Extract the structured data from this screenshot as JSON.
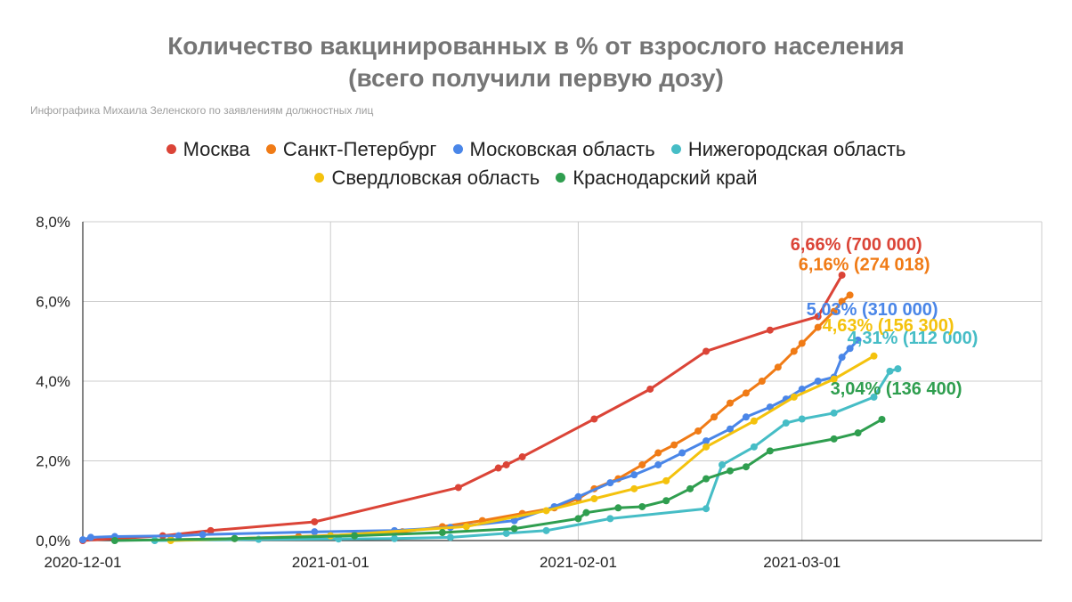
{
  "chart_data": {
    "type": "line",
    "title": "Количество вакцинированных в % от взрослого населения",
    "title_line2": "(всего получили первую дозу)",
    "subtitle": "Инфографика Михаила Зеленского по заявлениям должностных лиц",
    "xlabel": "",
    "ylabel": "",
    "xlim": [
      "2020-12-01",
      "2021-03-31"
    ],
    "ylim": [
      0,
      8
    ],
    "y_ticks": [
      "0,0%",
      "2,0%",
      "4,0%",
      "6,0%",
      "8,0%"
    ],
    "x_ticks": [
      "2020-12-01",
      "2021-01-01",
      "2021-02-01",
      "2021-03-01"
    ],
    "grid": true,
    "legend_position": "top",
    "series": [
      {
        "name": "Москва",
        "color": "#db4437",
        "label": "6,66% (700 000)",
        "points": [
          [
            "2020-12-01",
            0.0
          ],
          [
            "2020-12-11",
            0.12
          ],
          [
            "2020-12-17",
            0.25
          ],
          [
            "2020-12-30",
            0.47
          ],
          [
            "2021-01-17",
            1.33
          ],
          [
            "2021-01-22",
            1.82
          ],
          [
            "2021-01-23",
            1.9
          ],
          [
            "2021-01-25",
            2.1
          ],
          [
            "2021-02-03",
            3.05
          ],
          [
            "2021-02-10",
            3.8
          ],
          [
            "2021-02-17",
            4.75
          ],
          [
            "2021-02-25",
            5.28
          ],
          [
            "2021-03-03",
            5.62
          ],
          [
            "2021-03-06",
            6.66
          ]
        ]
      },
      {
        "name": "Санкт-Петербург",
        "color": "#f07b16",
        "label": "6,16% (274 018)",
        "points": [
          [
            "2020-12-12",
            0.02
          ],
          [
            "2020-12-20",
            0.05
          ],
          [
            "2020-12-28",
            0.1
          ],
          [
            "2021-01-04",
            0.15
          ],
          [
            "2021-01-10",
            0.22
          ],
          [
            "2021-01-15",
            0.35
          ],
          [
            "2021-01-20",
            0.5
          ],
          [
            "2021-01-25",
            0.68
          ],
          [
            "2021-01-29",
            0.82
          ],
          [
            "2021-02-01",
            1.05
          ],
          [
            "2021-02-03",
            1.3
          ],
          [
            "2021-02-06",
            1.55
          ],
          [
            "2021-02-09",
            1.9
          ],
          [
            "2021-02-11",
            2.2
          ],
          [
            "2021-02-13",
            2.4
          ],
          [
            "2021-02-16",
            2.75
          ],
          [
            "2021-02-18",
            3.1
          ],
          [
            "2021-02-20",
            3.45
          ],
          [
            "2021-02-22",
            3.7
          ],
          [
            "2021-02-24",
            4.0
          ],
          [
            "2021-02-26",
            4.35
          ],
          [
            "2021-02-28",
            4.75
          ],
          [
            "2021-03-01",
            4.95
          ],
          [
            "2021-03-03",
            5.35
          ],
          [
            "2021-03-05",
            5.75
          ],
          [
            "2021-03-06",
            6.0
          ],
          [
            "2021-03-07",
            6.16
          ]
        ]
      },
      {
        "name": "Московская область",
        "color": "#4a86e8",
        "label": "5,03% (310 000)",
        "points": [
          [
            "2020-12-01",
            0.02
          ],
          [
            "2020-12-02",
            0.08
          ],
          [
            "2020-12-05",
            0.1
          ],
          [
            "2020-12-13",
            0.12
          ],
          [
            "2020-12-16",
            0.15
          ],
          [
            "2020-12-30",
            0.22
          ],
          [
            "2021-01-09",
            0.25
          ],
          [
            "2021-01-16",
            0.33
          ],
          [
            "2021-01-24",
            0.5
          ],
          [
            "2021-01-29",
            0.85
          ],
          [
            "2021-02-01",
            1.1
          ],
          [
            "2021-02-05",
            1.45
          ],
          [
            "2021-02-08",
            1.65
          ],
          [
            "2021-02-11",
            1.9
          ],
          [
            "2021-02-14",
            2.2
          ],
          [
            "2021-02-17",
            2.5
          ],
          [
            "2021-02-20",
            2.8
          ],
          [
            "2021-02-22",
            3.1
          ],
          [
            "2021-02-25",
            3.35
          ],
          [
            "2021-02-27",
            3.55
          ],
          [
            "2021-03-01",
            3.8
          ],
          [
            "2021-03-03",
            4.0
          ],
          [
            "2021-03-05",
            4.1
          ],
          [
            "2021-03-06",
            4.6
          ],
          [
            "2021-03-07",
            4.82
          ],
          [
            "2021-03-08",
            5.03
          ]
        ]
      },
      {
        "name": "Нижегородская область",
        "color": "#46bdc6",
        "label": "4,31% (112 000)",
        "points": [
          [
            "2020-12-10",
            0.0
          ],
          [
            "2020-12-23",
            0.03
          ],
          [
            "2021-01-02",
            0.04
          ],
          [
            "2021-01-09",
            0.05
          ],
          [
            "2021-01-16",
            0.08
          ],
          [
            "2021-01-23",
            0.18
          ],
          [
            "2021-01-28",
            0.25
          ],
          [
            "2021-02-05",
            0.55
          ],
          [
            "2021-02-17",
            0.8
          ],
          [
            "2021-02-19",
            1.9
          ],
          [
            "2021-02-23",
            2.35
          ],
          [
            "2021-02-27",
            2.95
          ],
          [
            "2021-03-01",
            3.05
          ],
          [
            "2021-03-05",
            3.2
          ],
          [
            "2021-03-10",
            3.6
          ],
          [
            "2021-03-12",
            4.25
          ],
          [
            "2021-03-13",
            4.31
          ]
        ]
      },
      {
        "name": "Свердловская область",
        "color": "#f4c20d",
        "label": "4,63% (156 300)",
        "points": [
          [
            "2020-12-12",
            0.0
          ],
          [
            "2021-01-01",
            0.12
          ],
          [
            "2021-01-18",
            0.35
          ],
          [
            "2021-01-28",
            0.75
          ],
          [
            "2021-02-03",
            1.05
          ],
          [
            "2021-02-08",
            1.3
          ],
          [
            "2021-02-12",
            1.5
          ],
          [
            "2021-02-17",
            2.35
          ],
          [
            "2021-02-23",
            3.0
          ],
          [
            "2021-02-28",
            3.6
          ],
          [
            "2021-03-05",
            4.05
          ],
          [
            "2021-03-10",
            4.63
          ]
        ]
      },
      {
        "name": "Краснодарский край",
        "color": "#2f9e4f",
        "label": "3,04% (136 400)",
        "points": [
          [
            "2020-12-05",
            0.0
          ],
          [
            "2020-12-20",
            0.05
          ],
          [
            "2021-01-04",
            0.12
          ],
          [
            "2021-01-15",
            0.2
          ],
          [
            "2021-01-24",
            0.3
          ],
          [
            "2021-02-01",
            0.55
          ],
          [
            "2021-02-02",
            0.7
          ],
          [
            "2021-02-06",
            0.82
          ],
          [
            "2021-02-09",
            0.85
          ],
          [
            "2021-02-12",
            1.0
          ],
          [
            "2021-02-15",
            1.3
          ],
          [
            "2021-02-17",
            1.55
          ],
          [
            "2021-02-20",
            1.75
          ],
          [
            "2021-02-22",
            1.85
          ],
          [
            "2021-02-25",
            2.25
          ],
          [
            "2021-03-05",
            2.55
          ],
          [
            "2021-03-08",
            2.7
          ],
          [
            "2021-03-11",
            3.04
          ]
        ]
      }
    ]
  }
}
